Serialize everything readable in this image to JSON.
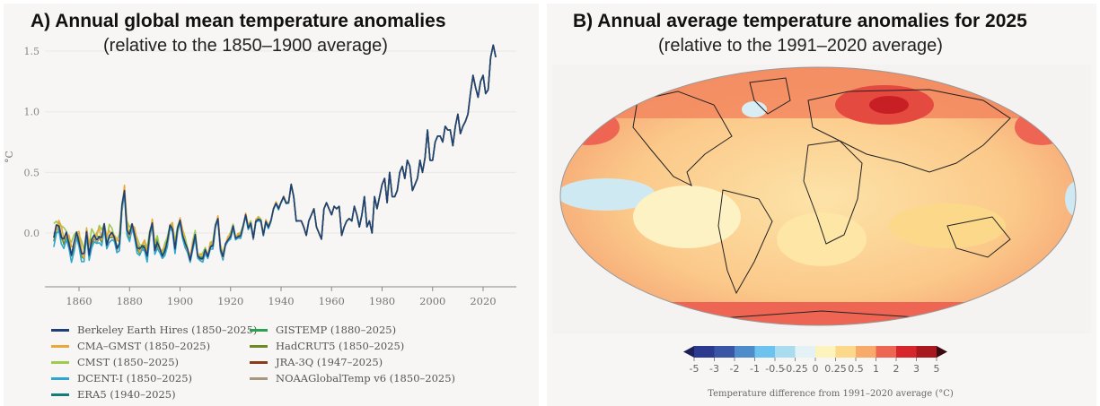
{
  "panel_a": {
    "title": "A)   Annual global mean temperature anomalies",
    "subtitle": "(relative to the 1850–1900 average)"
  },
  "panel_b": {
    "title": "B) Annual average temperature anomalies for 2025",
    "subtitle": "(relative to the 1991–2020 average)"
  },
  "chart_data": [
    {
      "type": "line",
      "title": "Annual global mean temperature anomalies",
      "ylabel": "°C",
      "xlim": [
        1845,
        2031
      ],
      "ylim": [
        -0.45,
        1.6
      ],
      "xticks": [
        1860,
        1880,
        1900,
        1920,
        1940,
        1960,
        1980,
        2000,
        2020
      ],
      "yticks": [
        0.0,
        0.5,
        1.0,
        1.5
      ],
      "ytick_labels": [
        "0.0",
        "0.5",
        "1.0",
        "1.5"
      ],
      "grid": true,
      "legend_position": "bottom",
      "base_start_year": 1850,
      "base_values": [
        -0.02,
        0.03,
        0.05,
        0.0,
        -0.05,
        -0.03,
        -0.08,
        -0.15,
        -0.1,
        -0.02,
        -0.05,
        -0.15,
        -0.2,
        0.0,
        -0.15,
        -0.05,
        -0.05,
        -0.05,
        0.0,
        -0.05,
        0.05,
        -0.08,
        0.0,
        -0.02,
        -0.05,
        -0.1,
        -0.08,
        0.2,
        0.35,
        0.05,
        -0.02,
        0.05,
        0.0,
        -0.1,
        -0.15,
        -0.12,
        -0.1,
        -0.18,
        -0.02,
        0.08,
        -0.12,
        -0.08,
        -0.15,
        -0.18,
        -0.13,
        -0.08,
        0.05,
        0.05,
        -0.12,
        0.02,
        0.1,
        0.0,
        -0.08,
        -0.15,
        -0.22,
        -0.1,
        -0.02,
        -0.2,
        -0.2,
        -0.2,
        -0.15,
        -0.2,
        -0.1,
        -0.1,
        0.05,
        0.12,
        -0.12,
        -0.2,
        -0.1,
        -0.05,
        -0.02,
        0.05,
        -0.05,
        -0.02,
        -0.02,
        0.05,
        0.15,
        0.05,
        0.08,
        -0.05,
        0.1,
        0.12,
        0.1,
        -0.02,
        0.1,
        0.05,
        0.1,
        0.2,
        0.25,
        0.2,
        0.25,
        0.3,
        0.25,
        0.25,
        0.4,
        0.3,
        0.1,
        0.1,
        0.1,
        0.05,
        -0.02,
        0.1,
        0.15,
        0.2,
        0.05,
        0.0,
        -0.05,
        0.2,
        0.25,
        0.2,
        0.15,
        0.22,
        0.2,
        0.22,
        -0.02,
        0.05,
        0.1,
        0.12,
        0.1,
        0.22,
        0.15,
        0.05,
        0.15,
        0.3,
        0.05,
        0.1,
        0.0,
        0.3,
        0.2,
        0.3,
        0.4,
        0.45,
        0.25,
        0.5,
        0.3,
        0.3,
        0.35,
        0.5,
        0.55,
        0.45,
        0.6,
        0.55,
        0.35,
        0.4,
        0.45,
        0.6,
        0.5,
        0.62,
        0.85,
        0.6,
        0.6,
        0.75,
        0.8,
        0.8,
        0.75,
        0.88,
        0.85,
        0.85,
        0.72,
        0.88,
        0.98,
        0.82,
        0.88,
        0.92,
        0.98,
        1.15,
        1.3,
        1.2,
        1.12,
        1.25,
        1.3,
        1.15,
        1.18,
        1.45,
        1.55,
        1.45
      ],
      "series": [
        {
          "name": "Berkeley Earth Hires (1850–2025)",
          "start": 1850,
          "offset": 0.0,
          "color": "#1f3f7a"
        },
        {
          "name": "CMA–GMST (1850–2025)",
          "start": 1850,
          "offset": 0.03,
          "color": "#e9a83a"
        },
        {
          "name": "CMST (1850–2025)",
          "start": 1850,
          "offset": 0.06,
          "color": "#9ccb4f"
        },
        {
          "name": "DCENT-I (1850–2025)",
          "start": 1850,
          "offset": -0.06,
          "color": "#2ea7d0"
        },
        {
          "name": "ERA5 (1940–2025)",
          "start": 1940,
          "offset": 0.0,
          "color": "#0f7f7a"
        },
        {
          "name": "GISTEMP (1880–2025)",
          "start": 1880,
          "offset": 0.01,
          "color": "#2aa24f"
        },
        {
          "name": "HadCRUT5 (1850–2025)",
          "start": 1850,
          "offset": -0.01,
          "color": "#6f8a24"
        },
        {
          "name": "JRA-3Q (1947–2025)",
          "start": 1947,
          "offset": 0.0,
          "color": "#8b3a1e"
        },
        {
          "name": "NOAAGlobalTemp v6 (1850–2025)",
          "start": 1850,
          "offset": -0.02,
          "color": "#a89680"
        }
      ]
    },
    {
      "type": "heatmap",
      "title": "Annual average temperature anomalies for 2025",
      "colorbar_label": "Temperature difference from 1991–2020 average (°C)",
      "colorbar_ticks": [
        "-5",
        "-3",
        "-2",
        "-1",
        "-0.5",
        "-0.25",
        "0",
        "0.25",
        "0.5",
        "1",
        "2",
        "3",
        "5"
      ],
      "colorbar_colors": [
        "#2b3a8f",
        "#3a55a6",
        "#4d8bcb",
        "#6cc3ef",
        "#a9dcef",
        "#e4f2f6",
        "#fdf3bd",
        "#fcd98a",
        "#f8aa6a",
        "#ee6553",
        "#d6262b",
        "#a8191f"
      ],
      "colorbar_extend_colors": [
        "#1c1f5a",
        "#3d0a0f"
      ]
    }
  ]
}
